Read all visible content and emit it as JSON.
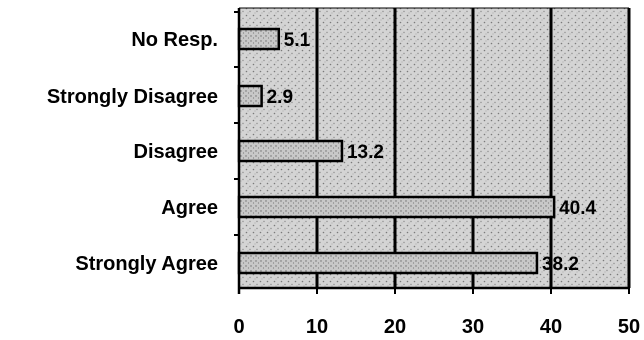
{
  "chart_data": {
    "type": "bar",
    "orientation": "horizontal",
    "categories": [
      "No Resp.",
      "Strongly Disagree",
      "Disagree",
      "Agree",
      "Strongly Agree"
    ],
    "values": [
      5.1,
      2.9,
      13.2,
      40.4,
      38.2
    ],
    "value_labels": [
      "5.1",
      "2.9",
      "13.2",
      "40.4",
      "38.2"
    ],
    "xlim": [
      0,
      50
    ],
    "x_ticks": [
      0,
      10,
      20,
      30,
      40,
      50
    ],
    "grid": "vertical",
    "background": "stippled gray",
    "colors": {
      "plot_fill": "#c9c9c9",
      "bar_fill": "#d9d9d9",
      "ink": "#000000"
    }
  }
}
